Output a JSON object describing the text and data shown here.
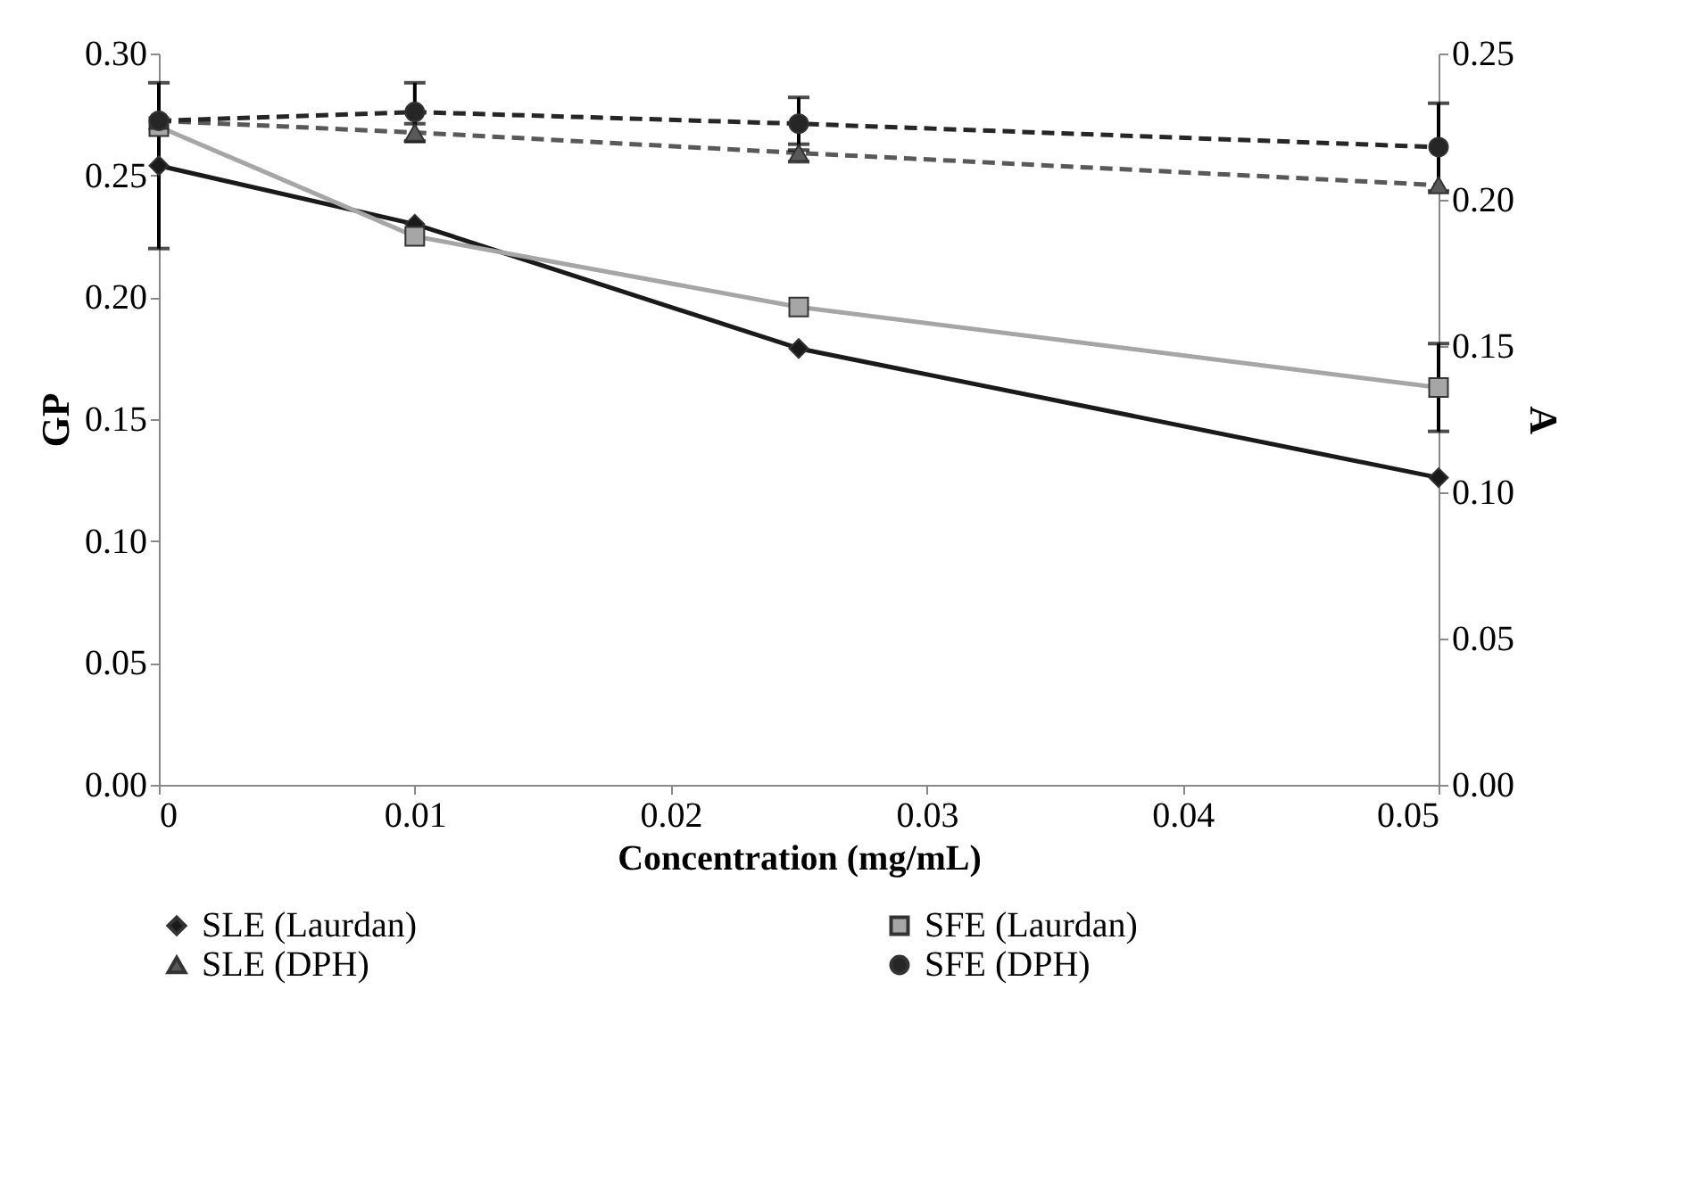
{
  "chart_data": {
    "type": "line",
    "xlabel": "Concentration (mg/mL)",
    "ylabel": "GP",
    "y2label": "A",
    "x": [
      0,
      0.01,
      0.025,
      0.05
    ],
    "xlim": [
      0,
      0.05
    ],
    "xticks": [
      0,
      0.01,
      0.02,
      0.03,
      0.04,
      0.05
    ],
    "ylim": [
      0,
      0.3
    ],
    "yticks": [
      {
        "value": 0,
        "label": "0.00"
      },
      {
        "value": 0.05,
        "label": "0.05"
      },
      {
        "value": 0.1,
        "label": "0.10"
      },
      {
        "value": 0.15,
        "label": "0.15"
      },
      {
        "value": 0.2,
        "label": "0.20"
      },
      {
        "value": 0.25,
        "label": "0.25"
      },
      {
        "value": 0.3,
        "label": "0.30"
      }
    ],
    "y2lim": [
      0,
      0.25
    ],
    "y2ticks": [
      {
        "value": 0,
        "label": "0.00"
      },
      {
        "value": 0.05,
        "label": "0.05"
      },
      {
        "value": 0.1,
        "label": "0.10"
      },
      {
        "value": 0.15,
        "label": "0.15"
      },
      {
        "value": 0.2,
        "label": "0.20"
      },
      {
        "value": 0.25,
        "label": "0.25"
      }
    ],
    "legend": "bottom",
    "grid": false,
    "series": [
      {
        "name": "SLE (Laurdan)",
        "color": "#1a1a1a",
        "marker": "diamond",
        "line_style": "solid",
        "values": [
          0.254,
          0.23,
          0.179,
          0.126
        ],
        "errors": [
          0.034,
          null,
          null,
          null
        ]
      },
      {
        "name": "SFE (Laurdan)",
        "color": "#a6a6a6",
        "marker": "square",
        "line_style": "solid",
        "values": [
          0.27,
          0.225,
          0.196,
          0.163
        ],
        "errors": [
          null,
          null,
          null,
          0.018
        ]
      },
      {
        "name": "SLE (DPH)",
        "color": "#595959",
        "marker": "triangle",
        "line_style": "dashed",
        "axis": "y2",
        "values": [
          0.227,
          0.223,
          0.216,
          0.205
        ],
        "errors": [
          null,
          0.003,
          0.003,
          null
        ]
      },
      {
        "name": "SFE (DPH)",
        "color": "#262626",
        "marker": "circle",
        "line_style": "dashed",
        "axis": "y2",
        "values": [
          0.227,
          0.23,
          0.226,
          0.218
        ],
        "errors": [
          null,
          0.01,
          0.009,
          0.015
        ]
      }
    ]
  }
}
